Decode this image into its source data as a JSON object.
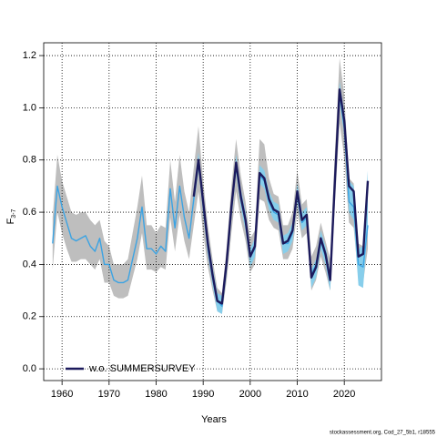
{
  "chart_data": {
    "type": "line",
    "x_label": "Years",
    "y_label": "F",
    "y_label_sub": "3-7",
    "footer": "stockassessment.org, Cod_27_5b1, r18555",
    "legend": "bottomleft",
    "grid": true,
    "xlim": [
      1956.1,
      2027.9
    ],
    "ylim": [
      -0.045,
      1.249
    ],
    "xticks": [
      1960,
      1970,
      1980,
      1990,
      2000,
      2010,
      2020
    ],
    "yticks": [
      {
        "value": 0,
        "label": "0.0"
      },
      0.2,
      0.4,
      0.6,
      0.8,
      {
        "value": 1,
        "label": "1.0"
      },
      1.2
    ],
    "x": [
      1958,
      1959,
      1960,
      1961,
      1962,
      1963,
      1964,
      1965,
      1966,
      1967,
      1968,
      1969,
      1970,
      1971,
      1972,
      1973,
      1974,
      1975,
      1976,
      1977,
      1978,
      1979,
      1980,
      1981,
      1982,
      1983,
      1984,
      1985,
      1986,
      1987,
      1988,
      1989,
      1990,
      1991,
      1992,
      1993,
      1994,
      1995,
      1996,
      1997,
      1998,
      1999,
      2000,
      2001,
      2002,
      2003,
      2004,
      2005,
      2006,
      2007,
      2008,
      2009,
      2010,
      2011,
      2012,
      2013,
      2014,
      2015,
      2016,
      2017,
      2018,
      2019,
      2020,
      2021,
      2022,
      2023,
      2024,
      2025
    ],
    "series": [
      {
        "color": "#3ba3e3",
        "band_color": "#bebebe",
        "width": 1.4,
        "values": [
          0.48,
          0.7,
          0.62,
          0.56,
          0.5,
          0.49,
          0.5,
          0.51,
          0.47,
          0.45,
          0.5,
          0.4,
          0.4,
          0.34,
          0.33,
          0.33,
          0.34,
          0.42,
          0.5,
          0.62,
          0.46,
          0.46,
          0.44,
          0.47,
          0.45,
          0.69,
          0.54,
          0.7,
          0.58,
          0.5,
          0.65,
          0.8,
          0.62,
          0.46,
          0.35,
          0.26,
          0.24,
          0.4,
          0.6,
          0.78,
          0.65,
          0.56,
          0.43,
          0.46,
          0.74,
          0.72,
          0.64,
          0.6,
          0.59,
          0.48,
          0.48,
          0.52,
          0.67,
          0.56,
          0.58,
          0.36,
          0.4,
          0.49,
          0.43,
          0.35,
          0.72,
          1.06,
          0.92,
          0.64,
          0.62,
          0.4,
          0.39,
          0.55
        ],
        "lower": [
          0.38,
          0.6,
          0.52,
          0.46,
          0.41,
          0.41,
          0.42,
          0.42,
          0.4,
          0.38,
          0.42,
          0.33,
          0.33,
          0.28,
          0.27,
          0.27,
          0.28,
          0.35,
          0.42,
          0.52,
          0.38,
          0.38,
          0.37,
          0.39,
          0.38,
          0.58,
          0.45,
          0.59,
          0.49,
          0.42,
          0.55,
          0.68,
          0.52,
          0.39,
          0.3,
          0.22,
          0.21,
          0.34,
          0.52,
          0.68,
          0.57,
          0.49,
          0.37,
          0.4,
          0.65,
          0.64,
          0.57,
          0.54,
          0.53,
          0.42,
          0.42,
          0.46,
          0.6,
          0.5,
          0.52,
          0.3,
          0.34,
          0.43,
          0.37,
          0.3,
          0.63,
          0.94,
          0.81,
          0.56,
          0.54,
          0.34,
          0.33,
          0.46
        ],
        "upper": [
          0.58,
          0.82,
          0.72,
          0.66,
          0.6,
          0.59,
          0.6,
          0.6,
          0.57,
          0.55,
          0.57,
          0.49,
          0.47,
          0.4,
          0.4,
          0.4,
          0.42,
          0.52,
          0.62,
          0.74,
          0.55,
          0.55,
          0.52,
          0.55,
          0.54,
          0.8,
          0.64,
          0.82,
          0.68,
          0.6,
          0.77,
          0.93,
          0.72,
          0.55,
          0.42,
          0.31,
          0.29,
          0.47,
          0.7,
          0.88,
          0.74,
          0.64,
          0.5,
          0.53,
          0.88,
          0.86,
          0.73,
          0.67,
          0.66,
          0.55,
          0.55,
          0.6,
          0.76,
          0.63,
          0.65,
          0.43,
          0.47,
          0.56,
          0.49,
          0.42,
          0.83,
          1.19,
          1.05,
          0.73,
          0.71,
          0.48,
          0.47,
          0.66
        ]
      },
      {
        "name": "w.o. SUMMERSURVEY",
        "color": "#1c1a5c",
        "band_color": "#87ceeb",
        "width": 2.4,
        "values": [
          null,
          null,
          null,
          null,
          null,
          null,
          null,
          null,
          null,
          null,
          null,
          null,
          null,
          null,
          null,
          null,
          null,
          null,
          null,
          null,
          null,
          null,
          null,
          null,
          null,
          null,
          null,
          null,
          null,
          null,
          0.66,
          0.8,
          0.64,
          0.48,
          0.36,
          0.26,
          0.25,
          0.41,
          0.62,
          0.79,
          0.66,
          0.57,
          0.43,
          0.47,
          0.75,
          0.73,
          0.65,
          0.61,
          0.6,
          0.48,
          0.49,
          0.53,
          0.68,
          0.57,
          0.59,
          0.35,
          0.39,
          0.5,
          0.44,
          0.34,
          0.72,
          1.07,
          0.95,
          0.7,
          0.68,
          0.43,
          0.44,
          0.72
        ],
        "lower": [
          null,
          null,
          null,
          null,
          null,
          null,
          null,
          null,
          null,
          null,
          null,
          null,
          null,
          null,
          null,
          null,
          null,
          null,
          null,
          null,
          null,
          null,
          null,
          null,
          null,
          null,
          null,
          null,
          null,
          null,
          0.62,
          0.76,
          0.6,
          0.44,
          0.32,
          0.22,
          0.21,
          0.37,
          0.58,
          0.75,
          0.62,
          0.53,
          0.39,
          0.43,
          0.71,
          0.69,
          0.61,
          0.57,
          0.56,
          0.44,
          0.45,
          0.49,
          0.64,
          0.53,
          0.55,
          0.31,
          0.35,
          0.46,
          0.4,
          0.3,
          0.68,
          1.02,
          0.9,
          0.6,
          0.57,
          0.32,
          0.31,
          0.55
        ],
        "upper": [
          null,
          null,
          null,
          null,
          null,
          null,
          null,
          null,
          null,
          null,
          null,
          null,
          null,
          null,
          null,
          null,
          null,
          null,
          null,
          null,
          null,
          null,
          null,
          null,
          null,
          null,
          null,
          null,
          null,
          null,
          0.69,
          0.83,
          0.67,
          0.51,
          0.39,
          0.29,
          0.28,
          0.44,
          0.65,
          0.82,
          0.69,
          0.6,
          0.46,
          0.5,
          0.78,
          0.76,
          0.68,
          0.64,
          0.63,
          0.51,
          0.52,
          0.56,
          0.71,
          0.6,
          0.62,
          0.38,
          0.42,
          0.53,
          0.47,
          0.37,
          0.75,
          1.1,
          0.98,
          0.72,
          0.7,
          0.46,
          0.47,
          0.76
        ]
      }
    ]
  }
}
